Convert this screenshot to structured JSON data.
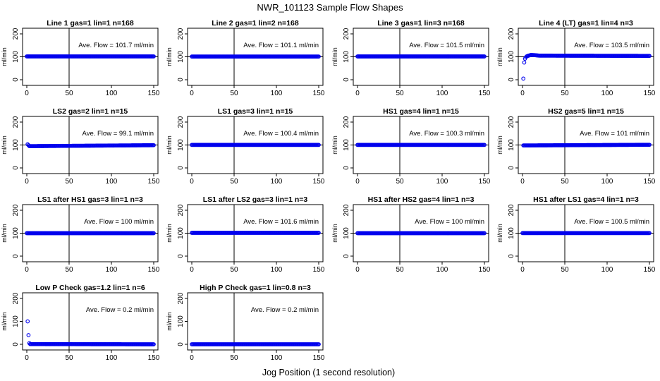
{
  "figure": {
    "title": "NWR_101123  Sample Flow Shapes",
    "xlabel": "Jog Position (1 second resolution)",
    "colors": {
      "points": "#0000ee",
      "frame": "#000000",
      "refline": "#000000"
    }
  },
  "chart_data": [
    {
      "type": "scatter",
      "title": "Line 1 gas=1 lin=1 n=168",
      "ylabel": "ml/min",
      "xlim": [
        0,
        150
      ],
      "ylim": [
        0,
        200
      ],
      "xticks": [
        0,
        50,
        100,
        150
      ],
      "yticks": [
        0,
        100,
        200
      ],
      "vline_x": 50,
      "hline_y": 100,
      "annotation": "Ave. Flow =  101.7  ml/min",
      "series": [
        {
          "points": [
            [
              0,
              101.7
            ],
            [
              150,
              101.7
            ]
          ]
        }
      ]
    },
    {
      "type": "scatter",
      "title": "Line 2 gas=1 lin=2 n=168",
      "ylabel": "ml/min",
      "xlim": [
        0,
        150
      ],
      "ylim": [
        0,
        200
      ],
      "xticks": [
        0,
        50,
        100,
        150
      ],
      "yticks": [
        0,
        100,
        200
      ],
      "vline_x": 50,
      "hline_y": 100,
      "annotation": "Ave. Flow =  101.1  ml/min",
      "series": [
        {
          "points": [
            [
              0,
              101.1
            ],
            [
              150,
              101.1
            ]
          ]
        }
      ]
    },
    {
      "type": "scatter",
      "title": "Line 3 gas=1 lin=3 n=168",
      "ylabel": "ml/min",
      "xlim": [
        0,
        150
      ],
      "ylim": [
        0,
        200
      ],
      "xticks": [
        0,
        50,
        100,
        150
      ],
      "yticks": [
        0,
        100,
        200
      ],
      "vline_x": 50,
      "hline_y": 100,
      "annotation": "Ave. Flow =  101.5  ml/min",
      "series": [
        {
          "points": [
            [
              0,
              101.5
            ],
            [
              150,
              101.5
            ]
          ]
        }
      ]
    },
    {
      "type": "scatter",
      "title": "Line 4 (LT) gas=1 lin=4 n=3",
      "ylabel": "ml/min",
      "xlim": [
        0,
        150
      ],
      "ylim": [
        0,
        200
      ],
      "xticks": [
        0,
        50,
        100,
        150
      ],
      "yticks": [
        0,
        100,
        200
      ],
      "vline_x": 50,
      "hline_y": 100,
      "annotation": "Ave. Flow =  103.5  ml/min",
      "series": [
        {
          "points": [
            [
              1,
              5
            ],
            [
              2,
              75
            ],
            [
              3,
              92
            ],
            [
              4,
              98
            ],
            [
              5,
              102
            ],
            [
              7,
              105
            ],
            [
              10,
              108
            ],
            [
              15,
              107
            ],
            [
              20,
              105
            ],
            [
              150,
              104
            ]
          ]
        }
      ]
    },
    {
      "type": "scatter",
      "title": "LS2 gas=2 lin=1 n=15",
      "ylabel": "ml/min",
      "xlim": [
        0,
        150
      ],
      "ylim": [
        0,
        200
      ],
      "xticks": [
        0,
        50,
        100,
        150
      ],
      "yticks": [
        0,
        100,
        200
      ],
      "vline_x": 50,
      "hline_y": 100,
      "annotation": "Ave. Flow =  99.1  ml/min",
      "series": [
        {
          "points": [
            [
              1,
              103
            ],
            [
              3,
              95
            ],
            [
              150,
              99.1
            ]
          ]
        }
      ]
    },
    {
      "type": "scatter",
      "title": "LS1 gas=3 lin=1 n=15",
      "ylabel": "ml/min",
      "xlim": [
        0,
        150
      ],
      "ylim": [
        0,
        200
      ],
      "xticks": [
        0,
        50,
        100,
        150
      ],
      "yticks": [
        0,
        100,
        200
      ],
      "vline_x": 50,
      "hline_y": 100,
      "annotation": "Ave. Flow =  100.4  ml/min",
      "series": [
        {
          "points": [
            [
              0,
              100.4
            ],
            [
              150,
              100.4
            ]
          ]
        }
      ]
    },
    {
      "type": "scatter",
      "title": "HS1 gas=4 lin=1 n=15",
      "ylabel": "ml/min",
      "xlim": [
        0,
        150
      ],
      "ylim": [
        0,
        200
      ],
      "xticks": [
        0,
        50,
        100,
        150
      ],
      "yticks": [
        0,
        100,
        200
      ],
      "vline_x": 50,
      "hline_y": 100,
      "annotation": "Ave. Flow =  100.3  ml/min",
      "series": [
        {
          "points": [
            [
              0,
              100.3
            ],
            [
              150,
              100.3
            ]
          ]
        }
      ]
    },
    {
      "type": "scatter",
      "title": "HS2 gas=5 lin=1 n=15",
      "ylabel": "ml/min",
      "xlim": [
        0,
        150
      ],
      "ylim": [
        0,
        200
      ],
      "xticks": [
        0,
        50,
        100,
        150
      ],
      "yticks": [
        0,
        100,
        200
      ],
      "vline_x": 50,
      "hline_y": 100,
      "annotation": "Ave. Flow =  101  ml/min",
      "series": [
        {
          "points": [
            [
              1,
              98
            ],
            [
              150,
              101
            ]
          ]
        }
      ]
    },
    {
      "type": "scatter",
      "title": "LS1 after HS1 gas=3 lin=1 n=3",
      "ylabel": "ml/min",
      "xlim": [
        0,
        150
      ],
      "ylim": [
        0,
        200
      ],
      "xticks": [
        0,
        50,
        100,
        150
      ],
      "yticks": [
        0,
        100,
        200
      ],
      "vline_x": 50,
      "hline_y": 100,
      "annotation": "Ave. Flow =  100  ml/min",
      "series": [
        {
          "points": [
            [
              0,
              100
            ],
            [
              150,
              100
            ]
          ]
        }
      ]
    },
    {
      "type": "scatter",
      "title": "LS1 after LS2 gas=3 lin=1 n=3",
      "ylabel": "ml/min",
      "xlim": [
        0,
        150
      ],
      "ylim": [
        0,
        200
      ],
      "xticks": [
        0,
        50,
        100,
        150
      ],
      "yticks": [
        0,
        100,
        200
      ],
      "vline_x": 50,
      "hline_y": 100,
      "annotation": "Ave. Flow =  101.6  ml/min",
      "series": [
        {
          "points": [
            [
              0,
              101.6
            ],
            [
              150,
              101.6
            ]
          ]
        }
      ]
    },
    {
      "type": "scatter",
      "title": "HS1 after HS2 gas=4 lin=1 n=3",
      "ylabel": "ml/min",
      "xlim": [
        0,
        150
      ],
      "ylim": [
        0,
        200
      ],
      "xticks": [
        0,
        50,
        100,
        150
      ],
      "yticks": [
        0,
        100,
        200
      ],
      "vline_x": 50,
      "hline_y": 100,
      "annotation": "Ave. Flow =  100  ml/min",
      "series": [
        {
          "points": [
            [
              0,
              100
            ],
            [
              150,
              100
            ]
          ]
        }
      ]
    },
    {
      "type": "scatter",
      "title": "HS1 after LS1 gas=4 lin=1 n=3",
      "ylabel": "ml/min",
      "xlim": [
        0,
        150
      ],
      "ylim": [
        0,
        200
      ],
      "xticks": [
        0,
        50,
        100,
        150
      ],
      "yticks": [
        0,
        100,
        200
      ],
      "vline_x": 50,
      "hline_y": 100,
      "annotation": "Ave. Flow =  100.5  ml/min",
      "series": [
        {
          "points": [
            [
              0,
              100.5
            ],
            [
              150,
              100.5
            ]
          ]
        }
      ]
    },
    {
      "type": "scatter",
      "title": "Low P Check gas=1.2 lin=1 n=6",
      "ylabel": "ml/min",
      "xlim": [
        0,
        150
      ],
      "ylim": [
        0,
        200
      ],
      "xticks": [
        0,
        50,
        100,
        150
      ],
      "yticks": [
        0,
        100,
        200
      ],
      "vline_x": 50,
      "hline_y": null,
      "annotation": "Ave. Flow =  0.2  ml/min",
      "series": [
        {
          "points": [
            [
              1,
              100
            ],
            [
              2,
              40
            ],
            [
              3,
              5
            ],
            [
              4,
              1
            ],
            [
              150,
              0
            ]
          ]
        }
      ]
    },
    {
      "type": "scatter",
      "title": "High P Check gas=1 lin=0.8 n=3",
      "ylabel": "ml/min",
      "xlim": [
        0,
        150
      ],
      "ylim": [
        0,
        200
      ],
      "xticks": [
        0,
        50,
        100,
        150
      ],
      "yticks": [
        0,
        100,
        200
      ],
      "vline_x": 50,
      "hline_y": null,
      "annotation": "Ave. Flow =  0.2  ml/min",
      "series": [
        {
          "points": [
            [
              0,
              0.2
            ],
            [
              150,
              0.2
            ]
          ]
        }
      ]
    }
  ]
}
